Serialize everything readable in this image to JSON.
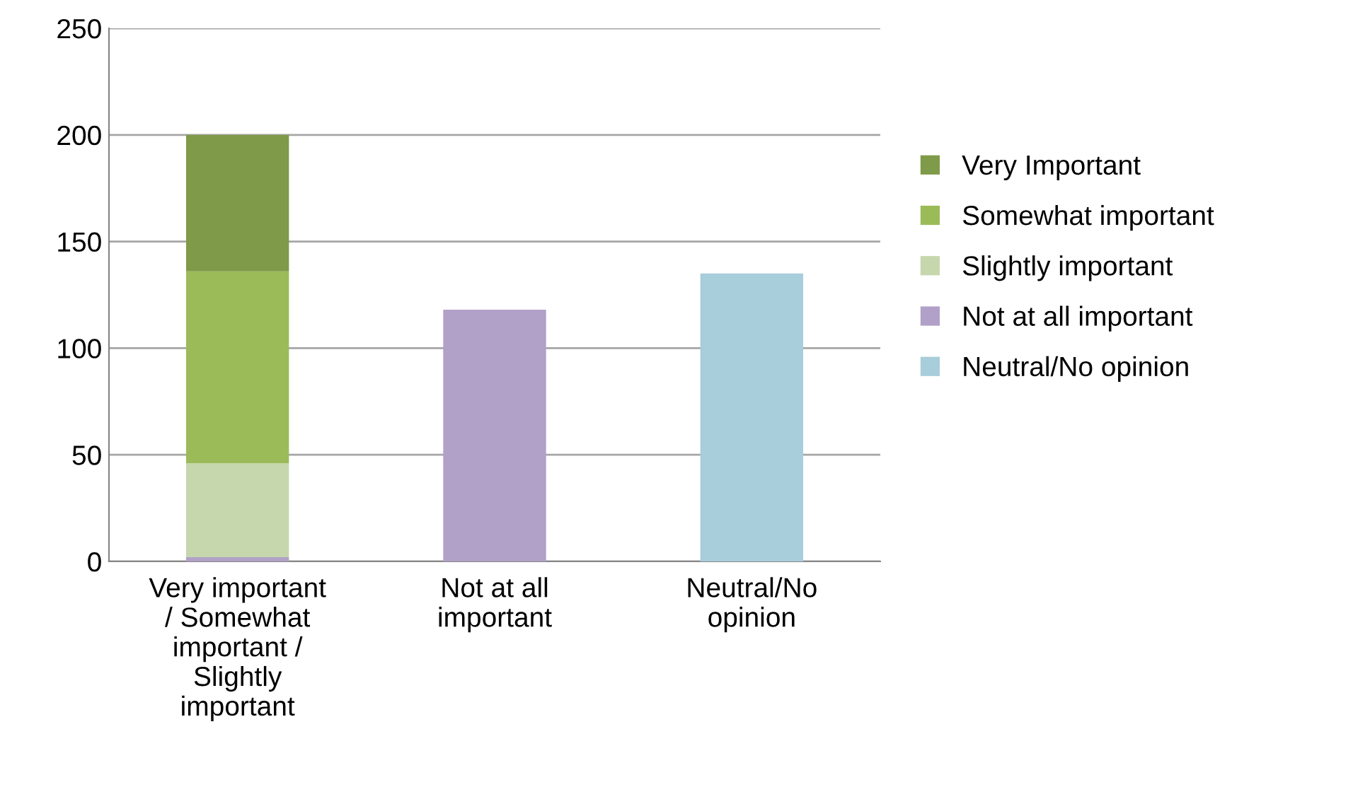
{
  "chart_data": {
    "type": "bar",
    "stacked": true,
    "categories": [
      "Very important / Somewhat important / Slightly important",
      "Not at all important",
      "Neutral/No opinion"
    ],
    "series": [
      {
        "name": "Neutral/No opinion",
        "color": "#a8cddb",
        "values": [
          null,
          null,
          135
        ]
      },
      {
        "name": "Not at all important",
        "color": "#b1a0c7",
        "values": [
          2,
          118,
          null
        ]
      },
      {
        "name": "Slightly important",
        "color": "#c6d7ad",
        "values": [
          44,
          null,
          null
        ]
      },
      {
        "name": "Somewhat important",
        "color": "#9bbb59",
        "values": [
          90,
          null,
          null
        ]
      },
      {
        "name": "Very Important",
        "color": "#7f9a48",
        "values": [
          64,
          null,
          null
        ]
      }
    ],
    "ylim": [
      0,
      250
    ],
    "yticks": [
      0,
      50,
      100,
      150,
      200,
      250
    ],
    "grid": "y",
    "legend": "right"
  }
}
